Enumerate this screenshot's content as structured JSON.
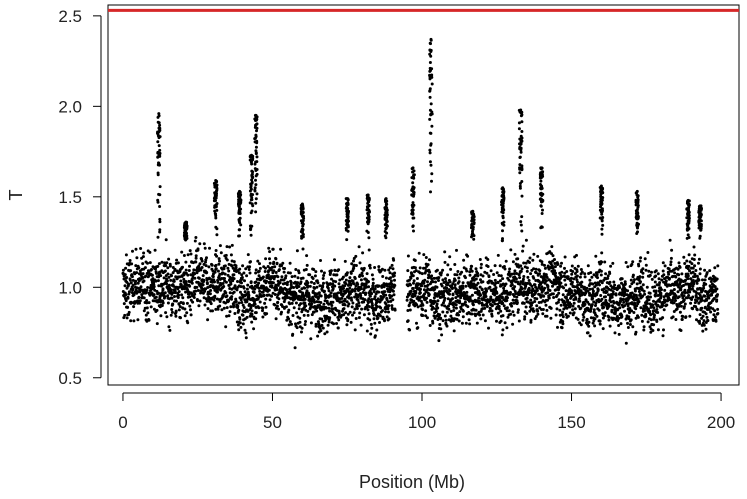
{
  "chart_data": {
    "type": "scatter",
    "title": "",
    "xlabel": "Position (Mb)",
    "ylabel": "T",
    "xlim": [
      -5,
      206
    ],
    "ylim": [
      0.46,
      2.56
    ],
    "x_ticks": [
      0,
      50,
      100,
      150,
      200
    ],
    "y_ticks": [
      0.5,
      1.0,
      1.5,
      2.0,
      2.5
    ],
    "x_tick_labels": [
      "0",
      "50",
      "100",
      "150",
      "200"
    ],
    "y_tick_labels": [
      "0.5",
      "1.0",
      "1.5",
      "2.0",
      "2.5"
    ],
    "grid": false,
    "legend": false,
    "point_color": "#000000",
    "threshold": {
      "y": 2.53,
      "color": "#d62728"
    },
    "segments": [
      {
        "x_start": 0,
        "x_end": 91,
        "baseline": 0.98,
        "spread": 0.17
      },
      {
        "x_start": 95,
        "x_end": 199,
        "baseline": 0.98,
        "spread": 0.17
      }
    ],
    "peaks": [
      {
        "x": 12,
        "y": 1.96
      },
      {
        "x": 21,
        "y": 1.36
      },
      {
        "x": 31,
        "y": 1.59
      },
      {
        "x": 39,
        "y": 1.53
      },
      {
        "x": 43,
        "y": 1.73
      },
      {
        "x": 44.5,
        "y": 1.95
      },
      {
        "x": 60,
        "y": 1.46
      },
      {
        "x": 75,
        "y": 1.49
      },
      {
        "x": 82,
        "y": 1.51
      },
      {
        "x": 88,
        "y": 1.49
      },
      {
        "x": 97,
        "y": 1.66
      },
      {
        "x": 103,
        "y": 2.37
      },
      {
        "x": 117,
        "y": 1.42
      },
      {
        "x": 127,
        "y": 1.55
      },
      {
        "x": 133,
        "y": 1.98
      },
      {
        "x": 140,
        "y": 1.66
      },
      {
        "x": 160,
        "y": 1.56
      },
      {
        "x": 172,
        "y": 1.53
      },
      {
        "x": 189,
        "y": 1.48
      },
      {
        "x": 193,
        "y": 1.45
      }
    ]
  }
}
